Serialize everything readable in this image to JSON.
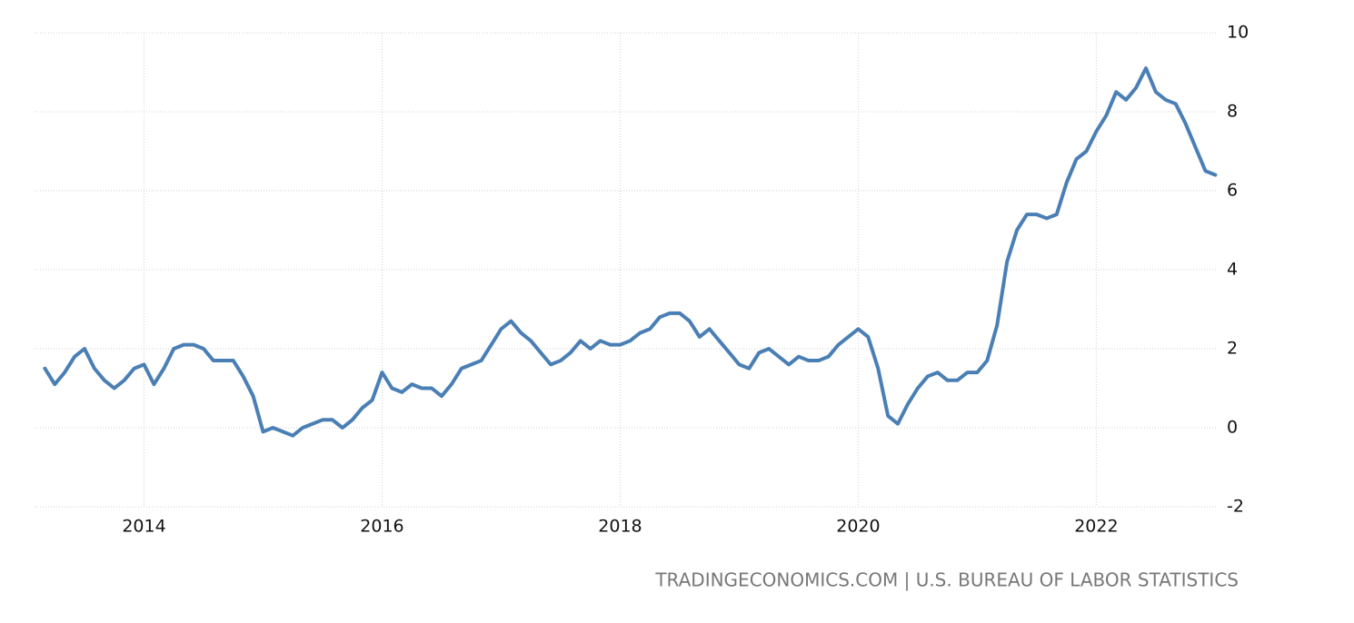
{
  "chart_data": {
    "type": "line",
    "source": "TRADINGECONOMICS.COM | U.S. BUREAU OF LABOR STATISTICS",
    "x": [
      2013.167,
      2013.25,
      2013.333,
      2013.417,
      2013.5,
      2013.583,
      2013.667,
      2013.75,
      2013.833,
      2013.917,
      2014,
      2014.083,
      2014.167,
      2014.25,
      2014.333,
      2014.417,
      2014.5,
      2014.583,
      2014.667,
      2014.75,
      2014.833,
      2014.917,
      2015,
      2015.083,
      2015.167,
      2015.25,
      2015.333,
      2015.417,
      2015.5,
      2015.583,
      2015.667,
      2015.75,
      2015.833,
      2015.917,
      2016,
      2016.083,
      2016.167,
      2016.25,
      2016.333,
      2016.417,
      2016.5,
      2016.583,
      2016.667,
      2016.75,
      2016.833,
      2016.917,
      2017,
      2017.083,
      2017.167,
      2017.25,
      2017.333,
      2017.417,
      2017.5,
      2017.583,
      2017.667,
      2017.75,
      2017.833,
      2017.917,
      2018,
      2018.083,
      2018.167,
      2018.25,
      2018.333,
      2018.417,
      2018.5,
      2018.583,
      2018.667,
      2018.75,
      2018.833,
      2018.917,
      2019,
      2019.083,
      2019.167,
      2019.25,
      2019.333,
      2019.417,
      2019.5,
      2019.583,
      2019.667,
      2019.75,
      2019.833,
      2019.917,
      2020,
      2020.083,
      2020.167,
      2020.25,
      2020.333,
      2020.417,
      2020.5,
      2020.583,
      2020.667,
      2020.75,
      2020.833,
      2020.917,
      2021,
      2021.083,
      2021.167,
      2021.25,
      2021.333,
      2021.417,
      2021.5,
      2021.583,
      2021.667,
      2021.75,
      2021.833,
      2021.917,
      2022,
      2022.083,
      2022.167,
      2022.25,
      2022.333,
      2022.417,
      2022.5,
      2022.583,
      2022.667,
      2022.75,
      2022.833,
      2022.917,
      2023
    ],
    "series": [
      {
        "color": "#4a7fb5",
        "values": [
          1.5,
          1.1,
          1.4,
          1.8,
          2.0,
          1.5,
          1.2,
          1.0,
          1.2,
          1.5,
          1.6,
          1.1,
          1.5,
          2.0,
          2.1,
          2.1,
          2.0,
          1.7,
          1.7,
          1.7,
          1.3,
          0.8,
          -0.1,
          0.0,
          -0.1,
          -0.2,
          0.0,
          0.1,
          0.2,
          0.2,
          0.0,
          0.2,
          0.5,
          0.7,
          1.4,
          1.0,
          0.9,
          1.1,
          1.0,
          1.0,
          0.8,
          1.1,
          1.5,
          1.6,
          1.7,
          2.1,
          2.5,
          2.7,
          2.4,
          2.2,
          1.9,
          1.6,
          1.7,
          1.9,
          2.2,
          2.0,
          2.2,
          2.1,
          2.1,
          2.2,
          2.4,
          2.5,
          2.8,
          2.9,
          2.9,
          2.7,
          2.3,
          2.5,
          2.2,
          1.9,
          1.6,
          1.5,
          1.9,
          2.0,
          1.8,
          1.6,
          1.8,
          1.7,
          1.7,
          1.8,
          2.1,
          2.3,
          2.5,
          2.3,
          1.5,
          0.3,
          0.1,
          0.6,
          1.0,
          1.3,
          1.4,
          1.2,
          1.2,
          1.4,
          1.4,
          1.7,
          2.6,
          4.2,
          5.0,
          5.4,
          5.4,
          5.3,
          5.4,
          6.2,
          6.8,
          7.0,
          7.5,
          7.9,
          8.5,
          8.3,
          8.6,
          9.1,
          8.5,
          8.3,
          8.2,
          7.7,
          7.1,
          6.5,
          6.4
        ]
      }
    ],
    "xlim": [
      2013.08,
      2023.02
    ],
    "xticks": [
      2014,
      2016,
      2018,
      2020,
      2022
    ],
    "ylim": [
      -2,
      10
    ],
    "yticks": [
      -2,
      0,
      2,
      4,
      6,
      8,
      10
    ],
    "grid": true
  }
}
